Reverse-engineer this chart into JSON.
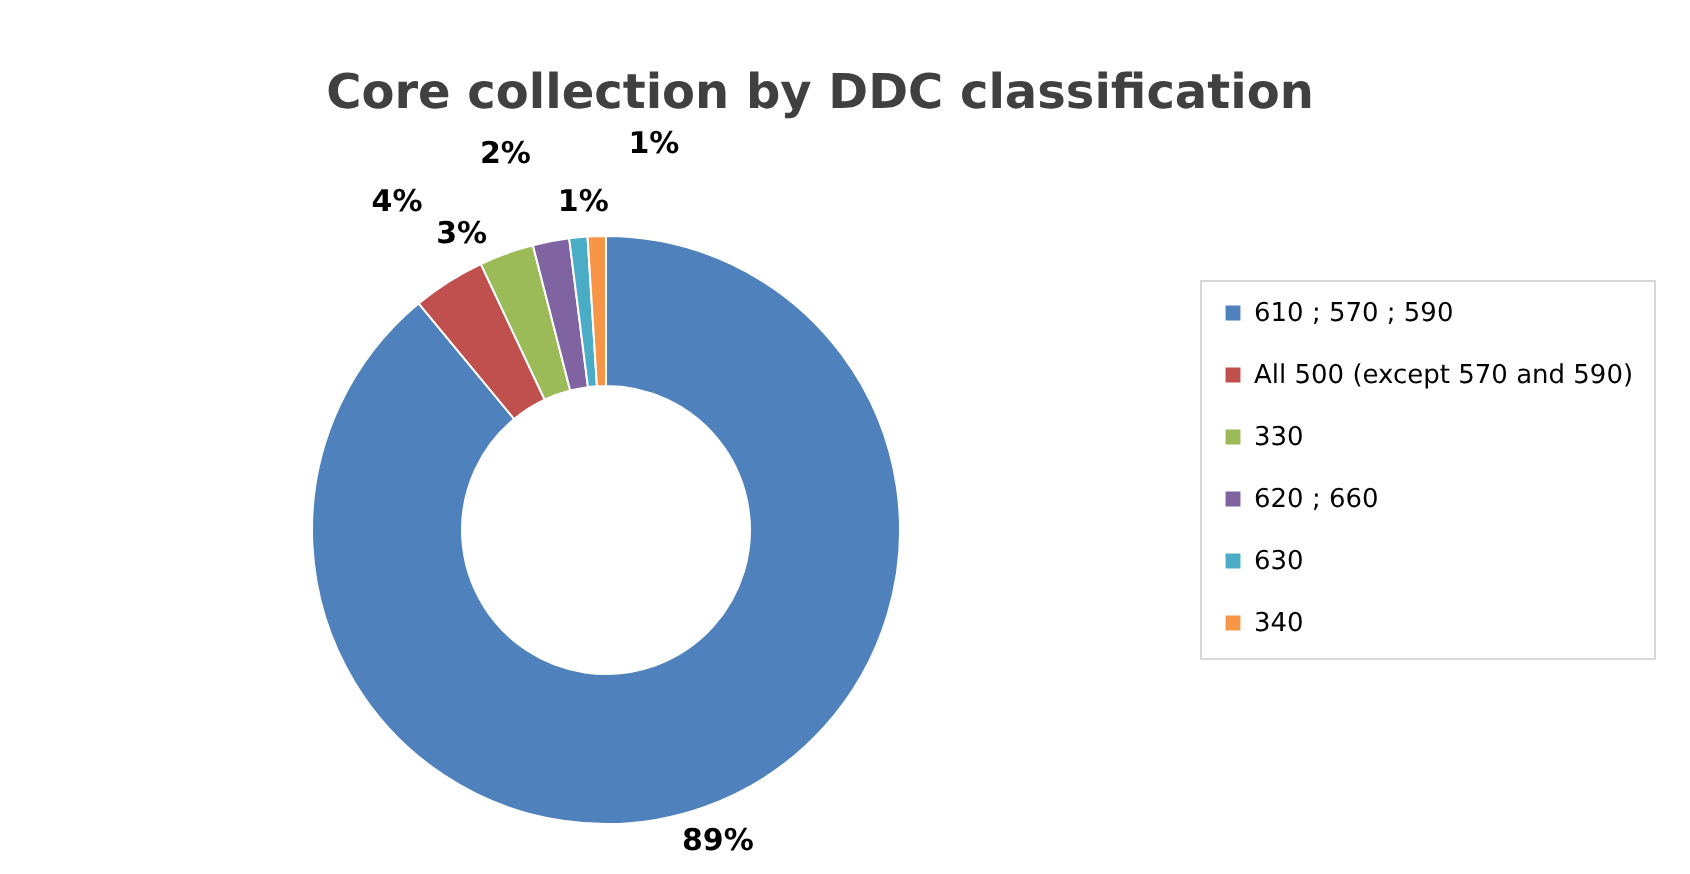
{
  "chart_data": {
    "type": "donut",
    "title": "Core collection by DDC classification",
    "categories": [
      "610 ; 570 ; 590",
      "All 500 (except 570 and 590)",
      "330",
      "620 ; 660",
      "630",
      "340"
    ],
    "values": [
      89,
      4,
      3,
      2,
      1,
      1
    ],
    "colors": [
      "#4f81bd",
      "#c0504d",
      "#9bbb59",
      "#8064a2",
      "#4bacc6",
      "#f79646"
    ],
    "value_labels": [
      "89%",
      "4%",
      "3%",
      "2%",
      "1%",
      "1%"
    ],
    "legend": "right"
  }
}
